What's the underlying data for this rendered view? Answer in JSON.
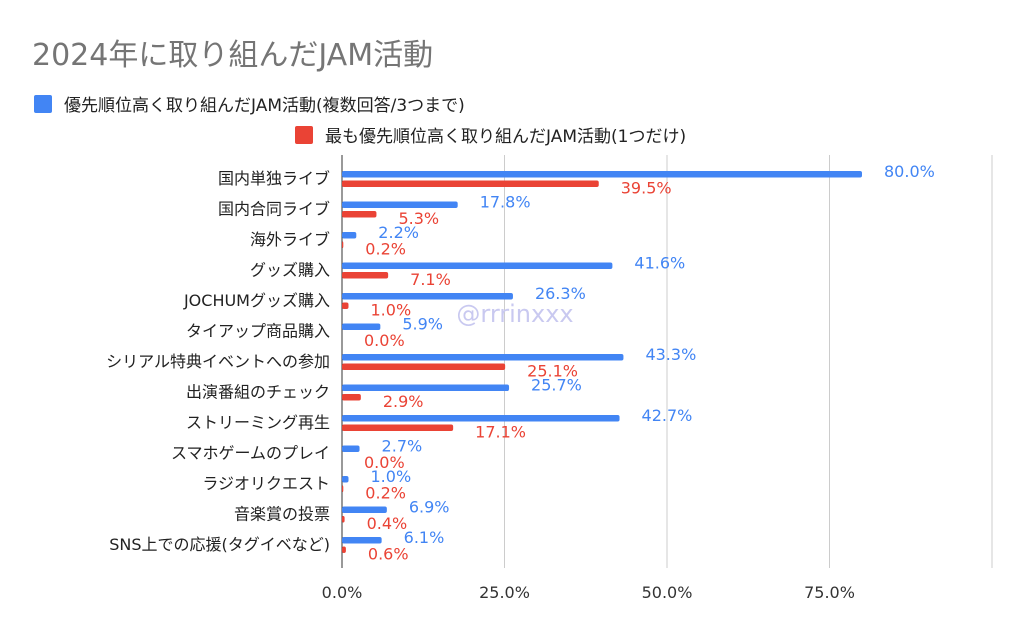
{
  "chart_data": {
    "type": "bar",
    "orientation": "horizontal",
    "title": "2024年に取り組んだJAM活動",
    "categories": [
      "国内単独ライブ",
      "国内合同ライブ",
      "海外ライブ",
      "グッズ購入",
      "JOCHUMグッズ購入",
      "タイアップ商品購入",
      "シリアル特典イベントへの参加",
      "出演番組のチェック",
      "ストリーミング再生",
      "スマホゲームのプレイ",
      "ラジオリクエスト",
      "音楽賞の投票",
      "SNS上での応援(タグイベなど)"
    ],
    "series": [
      {
        "name": "優先順位高く取り組んだJAM活動(複数回答/3つまで)",
        "color": "#4285f4",
        "values": [
          80.0,
          17.8,
          2.2,
          41.6,
          26.3,
          5.9,
          43.3,
          25.7,
          42.7,
          2.7,
          1.0,
          6.9,
          6.1
        ],
        "labels": [
          "80.0%",
          "17.8%",
          "2.2%",
          "41.6%",
          "26.3%",
          "5.9%",
          "43.3%",
          "25.7%",
          "42.7%",
          "2.7%",
          "1.0%",
          "6.9%",
          "6.1%"
        ]
      },
      {
        "name": "最も優先順位高く取り組んだJAM活動(1つだけ)",
        "color": "#ea4335",
        "values": [
          39.5,
          5.3,
          0.2,
          7.1,
          1.0,
          0.0,
          25.1,
          2.9,
          17.1,
          0.0,
          0.2,
          0.4,
          0.6
        ],
        "labels": [
          "39.5%",
          "5.3%",
          "0.2%",
          "7.1%",
          "1.0%",
          "0.0%",
          "25.1%",
          "2.9%",
          "17.1%",
          "0.0%",
          "0.2%",
          "0.4%",
          "0.6%"
        ]
      }
    ],
    "xlim": [
      0,
      100
    ],
    "xticks": [
      0,
      25,
      50,
      75
    ],
    "xtick_labels": [
      "0.0%",
      "25.0%",
      "50.0%",
      "75.0%"
    ],
    "grid": true,
    "legend_position": "top",
    "watermark": "@rrrinxxx"
  }
}
